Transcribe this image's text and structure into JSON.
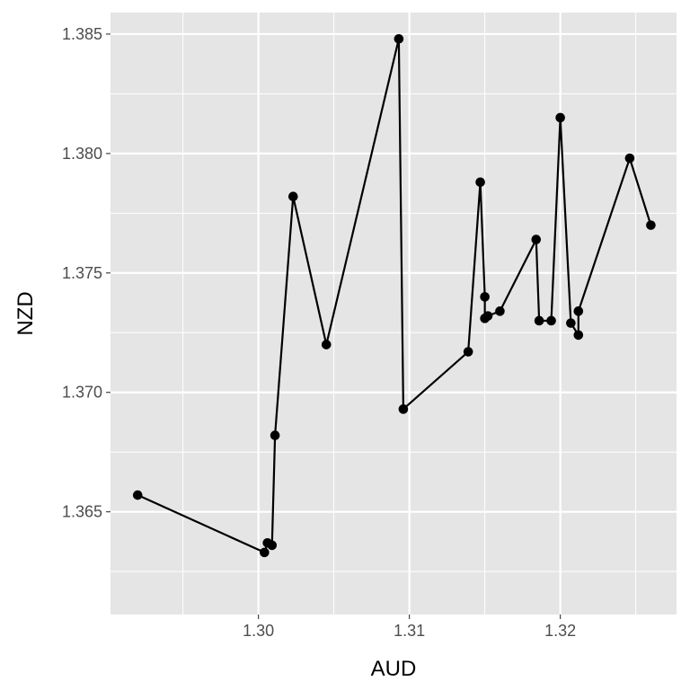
{
  "chart_data": {
    "type": "line",
    "title": "",
    "xlabel": "AUD",
    "ylabel": "NZD",
    "xlim": [
      1.2902,
      1.3277
    ],
    "ylim": [
      1.3607,
      1.3859
    ],
    "x_ticks": [
      1.3,
      1.31,
      1.32
    ],
    "x_tick_labels": [
      "1.30",
      "1.31",
      "1.32"
    ],
    "x_minor_ticks": [
      1.295,
      1.305,
      1.315,
      1.325
    ],
    "y_ticks": [
      1.365,
      1.37,
      1.375,
      1.38,
      1.385
    ],
    "y_tick_labels": [
      "1.365",
      "1.370",
      "1.375",
      "1.380",
      "1.385"
    ],
    "y_minor_ticks": [
      1.3625,
      1.3675,
      1.3725,
      1.3775,
      1.3825
    ],
    "grid": true,
    "markers": true,
    "colors": {
      "panel": "#e5e5e5",
      "grid": "#ffffff",
      "line": "#000000",
      "tick_text": "#4d4d4d",
      "tick_mark": "#333333"
    },
    "series": [
      {
        "points": [
          [
            1.292,
            1.3657
          ],
          [
            1.3004,
            1.3633
          ],
          [
            1.3006,
            1.3637
          ],
          [
            1.3009,
            1.3636
          ],
          [
            1.3011,
            1.3682
          ],
          [
            1.3023,
            1.3782
          ],
          [
            1.3045,
            1.372
          ],
          [
            1.3093,
            1.3848
          ],
          [
            1.3096,
            1.3693
          ],
          [
            1.3139,
            1.3717
          ],
          [
            1.3147,
            1.3788
          ],
          [
            1.315,
            1.374
          ],
          [
            1.315,
            1.3731
          ],
          [
            1.3152,
            1.3732
          ],
          [
            1.316,
            1.3734
          ],
          [
            1.3184,
            1.3764
          ],
          [
            1.3186,
            1.373
          ],
          [
            1.3194,
            1.373
          ],
          [
            1.32,
            1.3815
          ],
          [
            1.3207,
            1.3729
          ],
          [
            1.3212,
            1.3724
          ],
          [
            1.3212,
            1.3734
          ],
          [
            1.3246,
            1.3798
          ],
          [
            1.326,
            1.377
          ]
        ]
      }
    ]
  }
}
